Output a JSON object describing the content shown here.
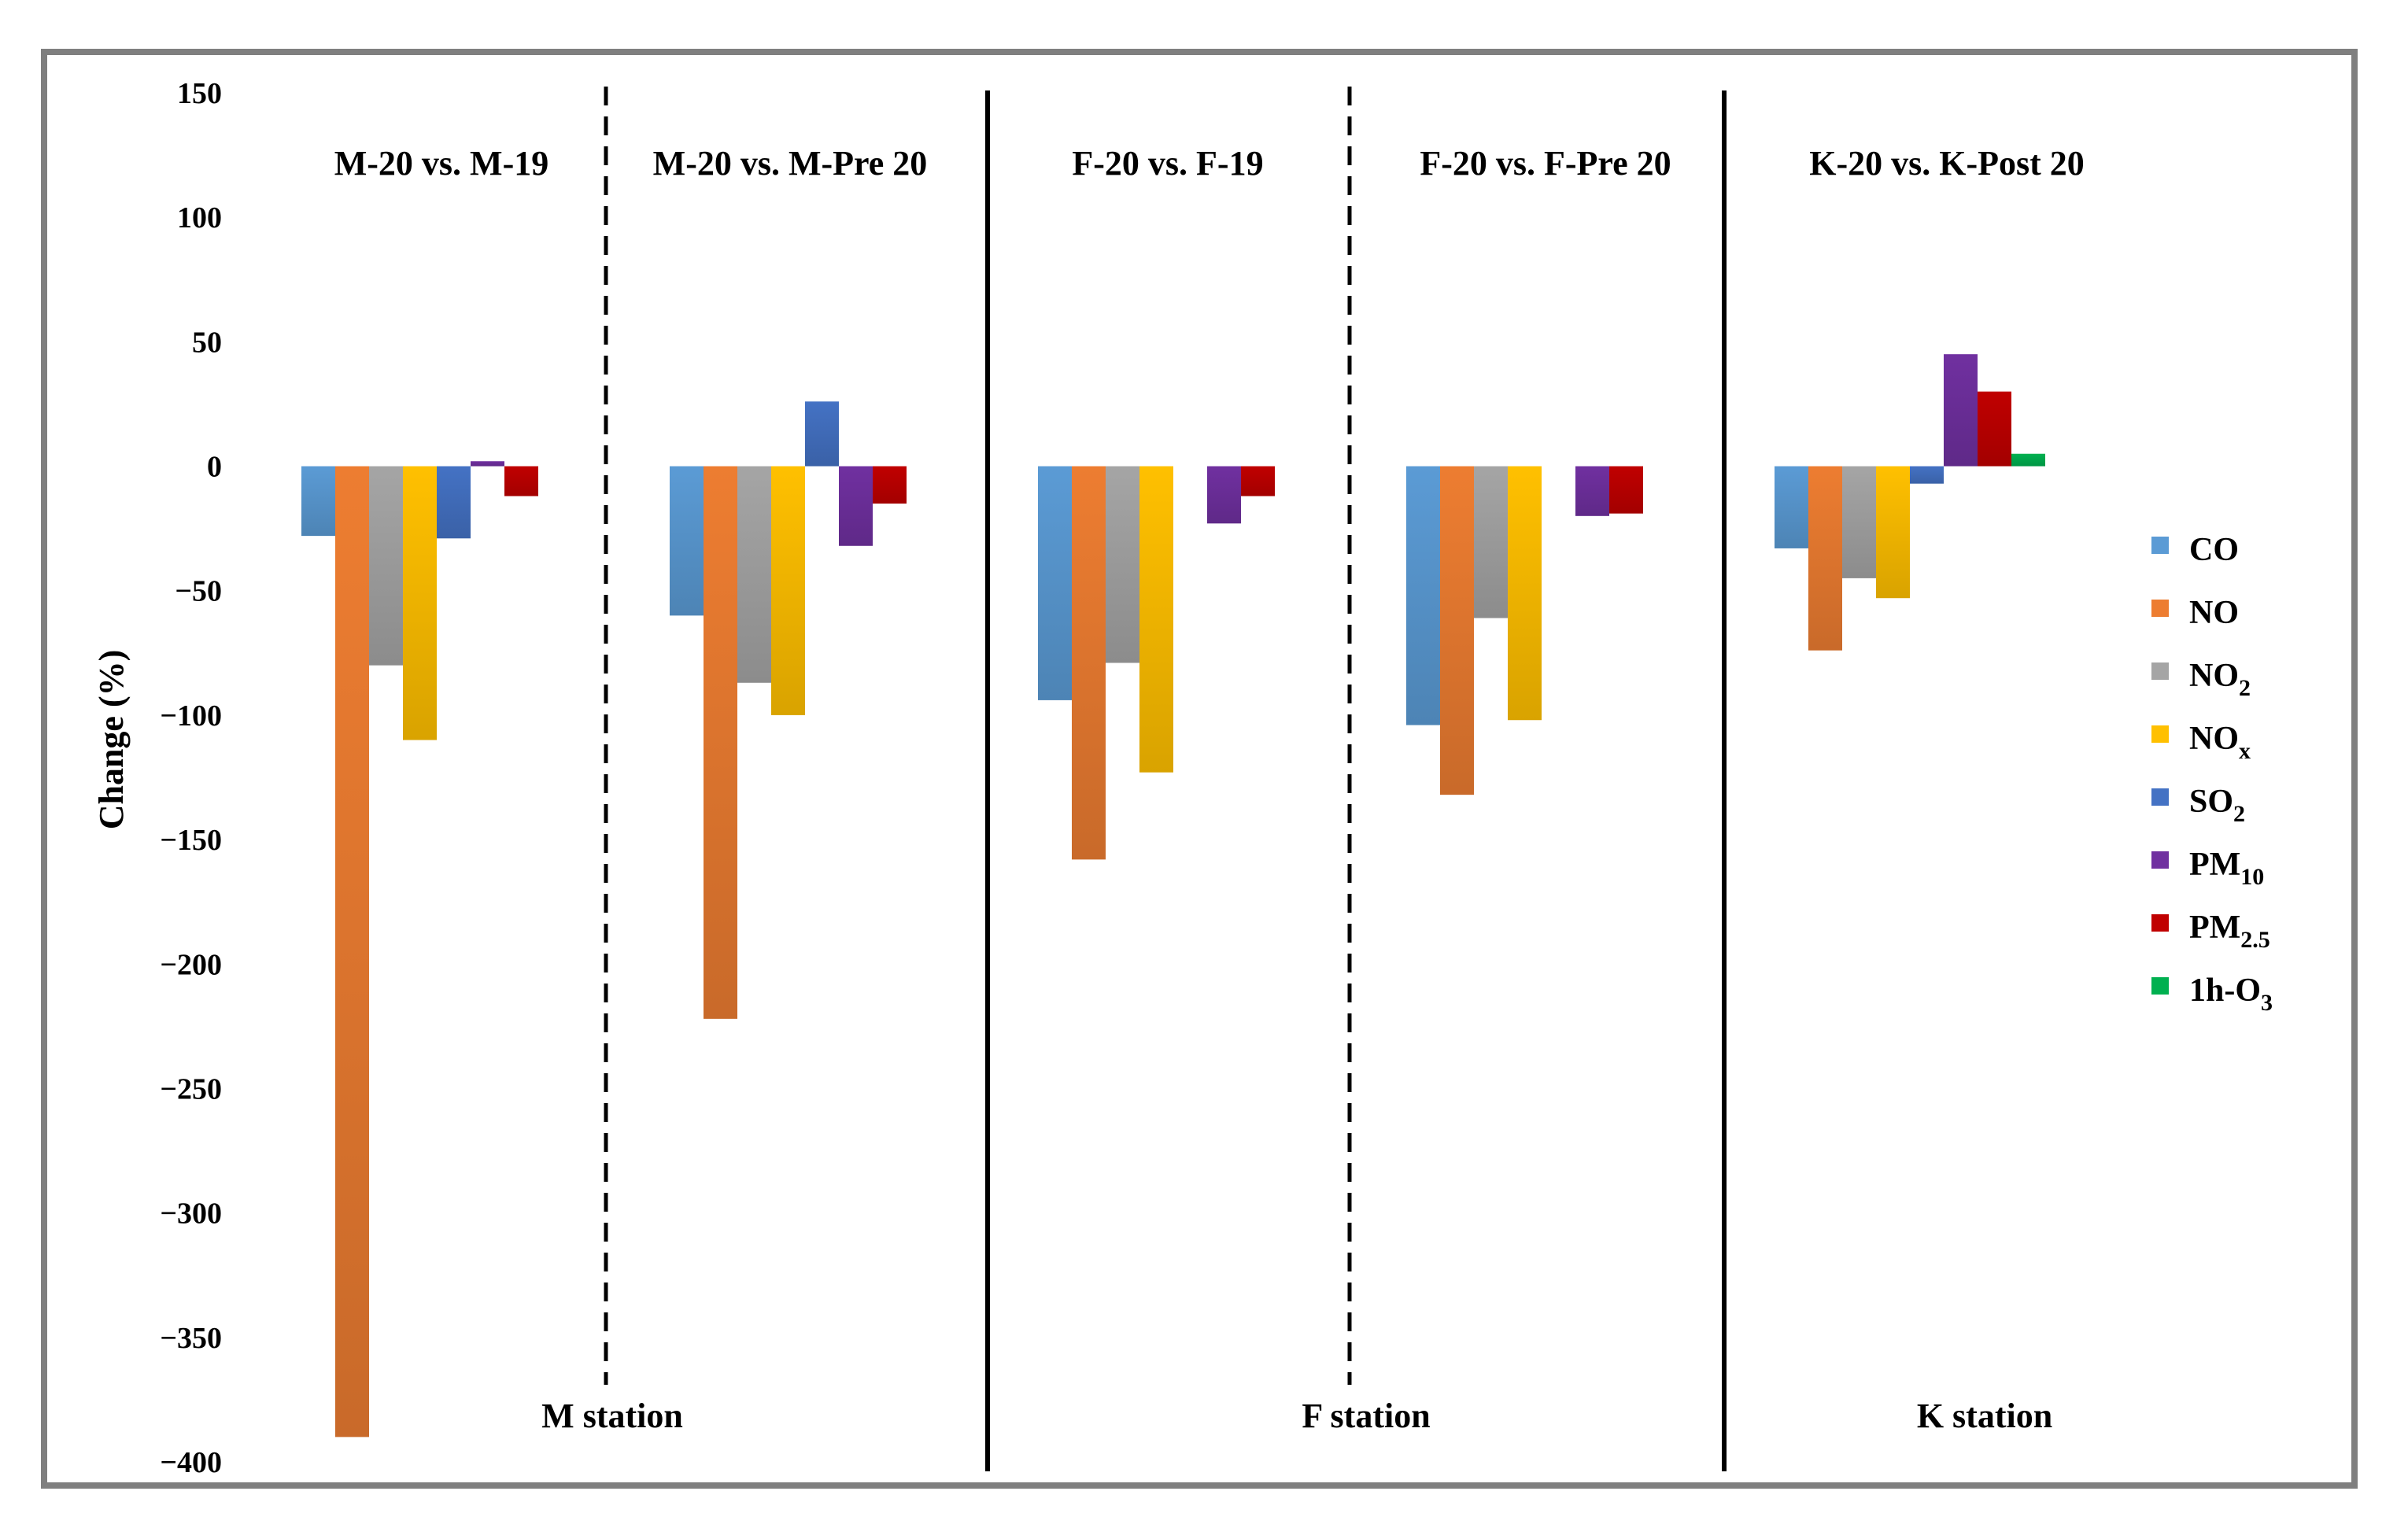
{
  "chart_data": {
    "type": "bar",
    "ylabel": "Change  (%)",
    "ylim": [
      -400,
      150
    ],
    "yticks": [
      150,
      100,
      50,
      0,
      -50,
      -100,
      -150,
      -200,
      -250,
      -300,
      -350,
      -400
    ],
    "ytick_labels": [
      "150",
      "100",
      "50",
      "0",
      "−50",
      "−100",
      "−150",
      "−200",
      "−250",
      "−300",
      "−350",
      "−400"
    ],
    "groups": [
      "M-20 vs. M-19",
      "M-20 vs. M-Pre 20",
      "F-20 vs. F-19",
      "F-20 vs. F-Pre 20",
      "K-20 vs. K-Post 20"
    ],
    "stations": [
      "M station",
      "F station",
      "K station"
    ],
    "legend_position": "right",
    "series": [
      {
        "name": "CO",
        "sub": "",
        "color": "#5b9bd5",
        "values": [
          -28,
          -60,
          -94,
          -104,
          -33
        ]
      },
      {
        "name": "NO",
        "sub": "",
        "color": "#ed7d31",
        "values": [
          -390,
          -222,
          -158,
          -132,
          -74
        ]
      },
      {
        "name": "NO",
        "sub": "2",
        "color": "#a5a5a5",
        "values": [
          -80,
          -87,
          -79,
          -61,
          -45
        ]
      },
      {
        "name": "NO",
        "sub": "x",
        "color": "#ffc000",
        "values": [
          -110,
          -100,
          -123,
          -102,
          -53
        ]
      },
      {
        "name": "SO",
        "sub": "2",
        "color": "#4472c4",
        "values": [
          -29,
          26,
          null,
          null,
          -7
        ]
      },
      {
        "name": "PM",
        "sub": "10",
        "color": "#7030a0",
        "values": [
          2,
          -32,
          -23,
          -20,
          45
        ]
      },
      {
        "name": "PM",
        "sub": "2.5",
        "color": "#c00000",
        "values": [
          -12,
          -15,
          -12,
          -19,
          30
        ]
      },
      {
        "name": "1h-O",
        "sub": "3",
        "color": "#00b050",
        "values": [
          null,
          null,
          null,
          null,
          5
        ]
      }
    ]
  }
}
